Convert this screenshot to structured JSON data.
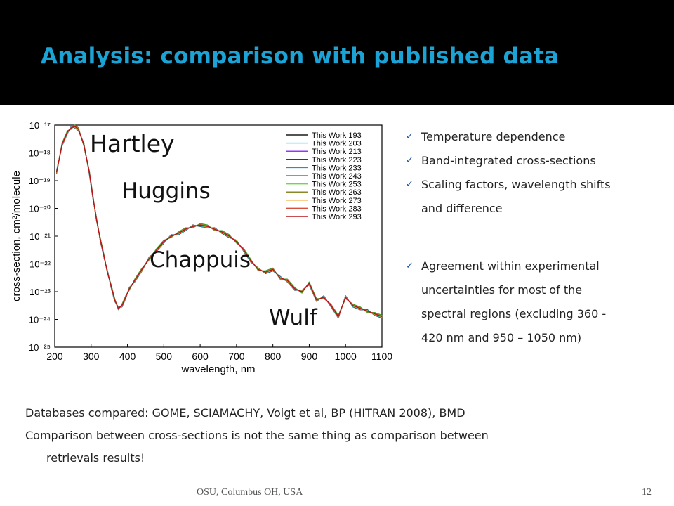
{
  "slide": {
    "title": "Analysis: comparison with published data",
    "title_color": "#1ba3d6",
    "bullets_group1": [
      "Temperature dependence",
      "Band-integrated cross-sections",
      "Scaling factors, wavelength shifts",
      "and difference"
    ],
    "bullet_group2": [
      "Agreement within experimental",
      "uncertainties for most of the",
      "spectral regions (excluding 360 -",
      "420 nm and 950 – 1050 nm)"
    ],
    "check_icon": "✓",
    "body_line1": "Databases compared: GOME, SCIAMACHY, Voigt et al, BP (HITRAN 2008), BMD",
    "body_line2": "Comparison between cross-sections is not the same  thing as comparison between",
    "body_line3": "retrievals results!",
    "footer_left": "OSU, Columbus OH, USA",
    "footer_right": "12"
  },
  "chart_data": {
    "type": "line",
    "xlabel": "wavelength, nm",
    "ylabel": "cross-section, cm²/molecule",
    "xlim": [
      200,
      1100
    ],
    "ylim_log10": [
      -25,
      -17
    ],
    "y_scale": "log",
    "x_ticks": [
      200,
      300,
      400,
      500,
      600,
      700,
      800,
      900,
      1000,
      1100
    ],
    "y_ticks": [
      "10⁻¹⁷",
      "10⁻¹⁸",
      "10⁻¹⁹",
      "10⁻²⁰",
      "10⁻²¹",
      "10⁻²²",
      "10⁻²³",
      "10⁻²⁴",
      "10⁻²⁵"
    ],
    "band_labels": [
      "Hartley",
      "Huggins",
      "Chappuis",
      "Wulf"
    ],
    "legend_position": "top-right",
    "spectrum_log10": {
      "x": [
        205,
        220,
        235,
        245,
        255,
        265,
        280,
        295,
        305,
        315,
        325,
        335,
        345,
        355,
        365,
        375,
        385,
        395,
        405,
        420,
        440,
        460,
        480,
        500,
        520,
        540,
        560,
        580,
        600,
        620,
        640,
        660,
        680,
        700,
        720,
        740,
        760,
        780,
        800,
        820,
        840,
        860,
        880,
        900,
        920,
        940,
        960,
        980,
        1000,
        1020,
        1040,
        1060,
        1080,
        1100
      ],
      "y": [
        -18.7,
        -17.7,
        -17.25,
        -17.1,
        -17.05,
        -17.15,
        -17.7,
        -18.7,
        -19.6,
        -20.4,
        -21.1,
        -21.7,
        -22.3,
        -22.8,
        -23.3,
        -23.6,
        -23.5,
        -23.2,
        -22.9,
        -22.6,
        -22.2,
        -21.8,
        -21.5,
        -21.2,
        -21.0,
        -20.9,
        -20.75,
        -20.65,
        -20.6,
        -20.65,
        -20.75,
        -20.85,
        -21.0,
        -21.2,
        -21.5,
        -21.9,
        -22.2,
        -22.3,
        -22.2,
        -22.5,
        -22.6,
        -22.9,
        -23.0,
        -22.7,
        -23.3,
        -23.2,
        -23.5,
        -23.9,
        -23.2,
        -23.5,
        -23.6,
        -23.7,
        -23.8,
        -23.9
      ]
    },
    "series": [
      {
        "name": "This Work 193",
        "color": "#1a1a1a",
        "offset": 0.05
      },
      {
        "name": "This Work 203",
        "color": "#5fd3f5",
        "offset": -0.04
      },
      {
        "name": "This Work 213",
        "color": "#9933ff",
        "offset": 0.03
      },
      {
        "name": "This Work 223",
        "color": "#2233aa",
        "offset": -0.02
      },
      {
        "name": "This Work 233",
        "color": "#2e8bc0",
        "offset": 0.04
      },
      {
        "name": "This Work 243",
        "color": "#2ca02c",
        "offset": -0.05
      },
      {
        "name": "This Work 253",
        "color": "#66dd44",
        "offset": 0.02
      },
      {
        "name": "This Work 263",
        "color": "#8a8a2a",
        "offset": -0.03
      },
      {
        "name": "This Work 273",
        "color": "#f59b1a",
        "offset": 0.01
      },
      {
        "name": "This Work 283",
        "color": "#d94f3a",
        "offset": -0.01
      },
      {
        "name": "This Work 293",
        "color": "#b5121b",
        "offset": 0.0
      }
    ]
  }
}
